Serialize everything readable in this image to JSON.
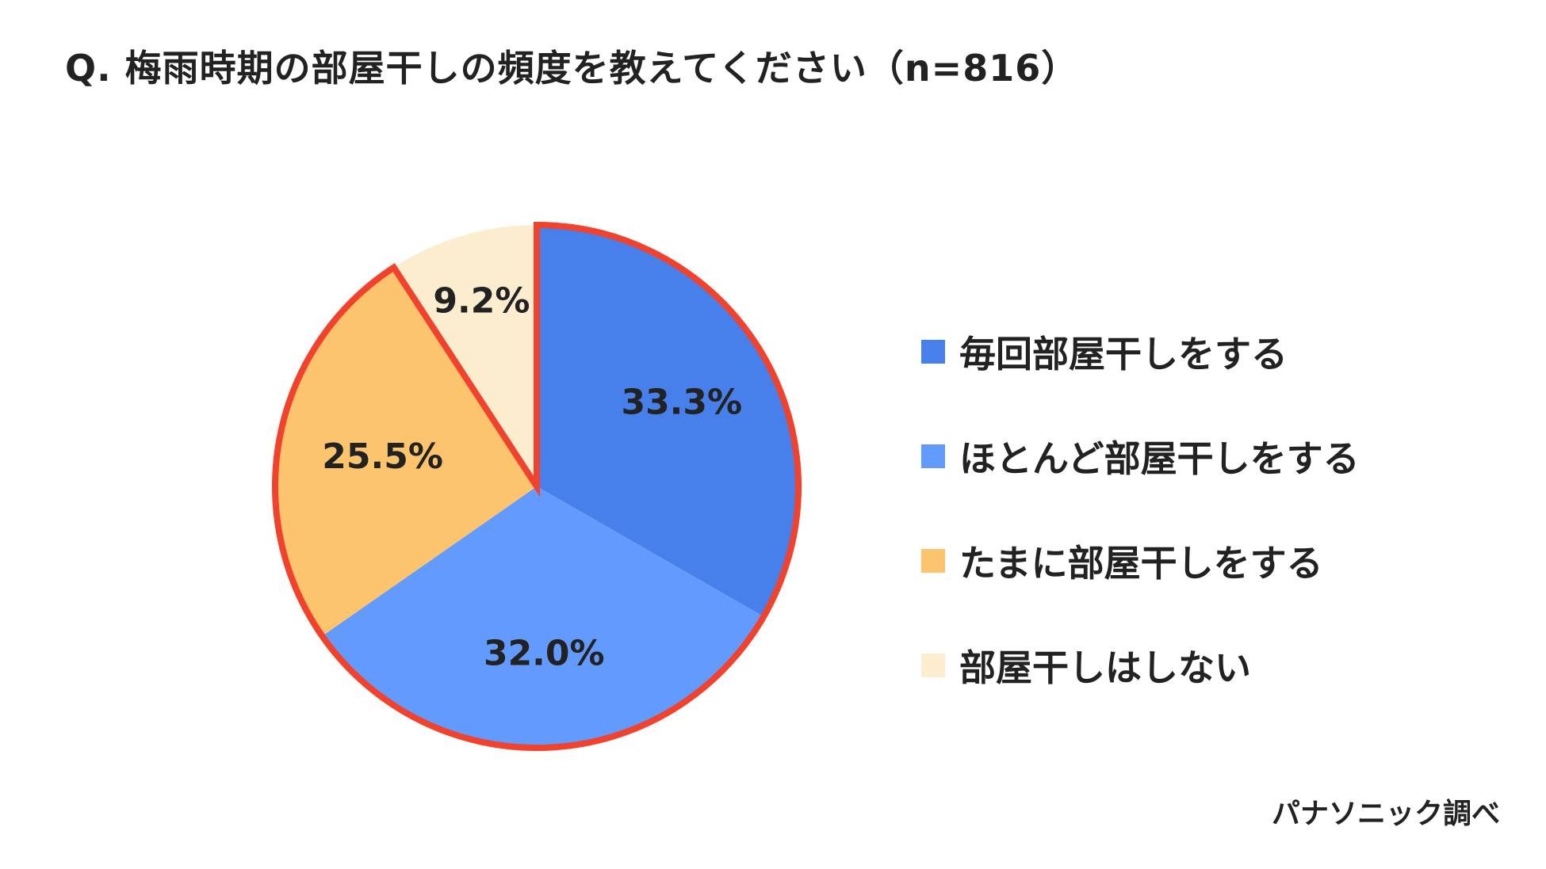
{
  "chart_data": {
    "type": "pie",
    "title": "Q. 梅雨時期の部屋干しの頻度を教えてください（n=816）",
    "categories": [
      "毎回部屋干しをする",
      "ほとんど部屋干しをする",
      "たまに部屋干しをする",
      "部屋干しはしない"
    ],
    "values": [
      33.3,
      32.0,
      25.5,
      9.2
    ],
    "value_labels": [
      "33.3%",
      "32.0%",
      "25.5%",
      "9.2%"
    ],
    "colors": [
      "#4780ea",
      "#639afd",
      "#fdc46e",
      "#fdedcf"
    ],
    "outline_color": "#f0422d",
    "legend_position": "right"
  },
  "source": "パナソニック調べ"
}
